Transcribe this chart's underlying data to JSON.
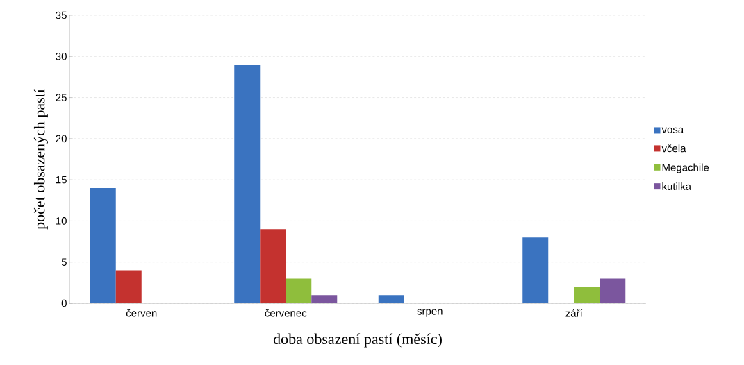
{
  "chart_data": {
    "type": "bar",
    "xlabel": "doba obsazení pastí (měsíc)",
    "ylabel": "počet obsazených pastí",
    "categories": [
      "červen",
      "červenec",
      "srpen",
      "září"
    ],
    "series": [
      {
        "name": "vosa",
        "color": "#3a73c0",
        "values": [
          14,
          29,
          1,
          8
        ]
      },
      {
        "name": "včela",
        "color": "#c4322f",
        "values": [
          4,
          9,
          0,
          0
        ]
      },
      {
        "name": "Megachile",
        "color": "#8fbe3c",
        "values": [
          0,
          3,
          0,
          2
        ]
      },
      {
        "name": "kutilka",
        "color": "#7b569e",
        "values": [
          0,
          1,
          0,
          3
        ]
      }
    ],
    "ylim": [
      0,
      35
    ],
    "yticks": [
      0,
      5,
      10,
      15,
      20,
      25,
      30,
      35
    ],
    "grid": "y",
    "legend": "right"
  }
}
